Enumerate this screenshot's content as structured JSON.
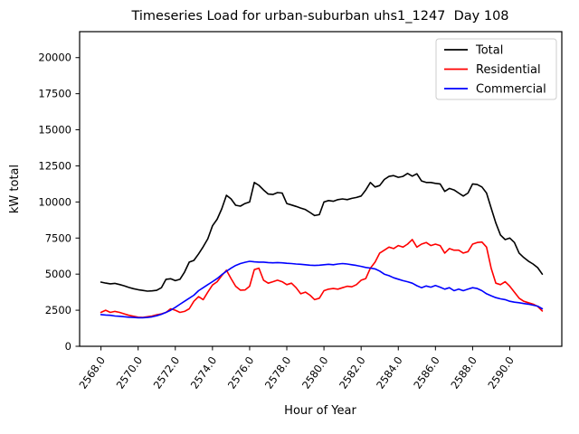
{
  "chart_data": {
    "type": "line",
    "title": "Timeseries Load for urban-suburban uhs1_1247  Day 108",
    "xlabel": "Hour of Year",
    "ylabel": "kW total",
    "xlim": [
      2566.85,
      2592.8
    ],
    "ylim": [
      0,
      21800
    ],
    "grid": false,
    "legend_position": "upper right",
    "x_tick_values": [
      2568,
      2570,
      2572,
      2574,
      2576,
      2578,
      2580,
      2582,
      2584,
      2586,
      2588,
      2590
    ],
    "x_tick_labels": [
      "2568.0",
      "2570.0",
      "2572.0",
      "2574.0",
      "2576.0",
      "2578.0",
      "2580.0",
      "2582.0",
      "2584.0",
      "2586.0",
      "2588.0",
      "2590.0"
    ],
    "y_tick_values": [
      0,
      2500,
      5000,
      7500,
      10000,
      12500,
      15000,
      17500,
      20000
    ],
    "y_tick_labels": [
      "0",
      "2500",
      "5000",
      "7500",
      "10000",
      "12500",
      "15000",
      "17500",
      "20000"
    ],
    "x": [
      2568.0,
      2568.25,
      2568.5,
      2568.75,
      2569.0,
      2569.25,
      2569.5,
      2569.75,
      2570.0,
      2570.25,
      2570.5,
      2570.75,
      2571.0,
      2571.25,
      2571.5,
      2571.75,
      2572.0,
      2572.25,
      2572.5,
      2572.75,
      2573.0,
      2573.25,
      2573.5,
      2573.75,
      2574.0,
      2574.25,
      2574.5,
      2574.75,
      2575.0,
      2575.25,
      2575.5,
      2575.75,
      2576.0,
      2576.25,
      2576.5,
      2576.75,
      2577.0,
      2577.25,
      2577.5,
      2577.75,
      2578.0,
      2578.25,
      2578.5,
      2578.75,
      2579.0,
      2579.25,
      2579.5,
      2579.75,
      2580.0,
      2580.25,
      2580.5,
      2580.75,
      2581.0,
      2581.25,
      2581.5,
      2581.75,
      2582.0,
      2582.25,
      2582.5,
      2582.75,
      2583.0,
      2583.25,
      2583.5,
      2583.75,
      2584.0,
      2584.25,
      2584.5,
      2584.75,
      2585.0,
      2585.25,
      2585.5,
      2585.75,
      2586.0,
      2586.25,
      2586.5,
      2586.75,
      2587.0,
      2587.25,
      2587.5,
      2587.75,
      2588.0,
      2588.25,
      2588.5,
      2588.75,
      2589.0,
      2589.25,
      2589.5,
      2589.75,
      2590.0,
      2590.25,
      2590.5,
      2590.75,
      2591.0,
      2591.25,
      2591.5,
      2591.75
    ],
    "series": [
      {
        "name": "Total",
        "color": "#000000",
        "values": [
          4450,
          4380,
          4330,
          4360,
          4280,
          4190,
          4080,
          3990,
          3920,
          3870,
          3820,
          3840,
          3880,
          4060,
          4640,
          4680,
          4550,
          4640,
          5140,
          5830,
          5950,
          6400,
          6900,
          7450,
          8350,
          8800,
          9520,
          10460,
          10210,
          9770,
          9710,
          9890,
          10000,
          11350,
          11150,
          10830,
          10550,
          10520,
          10650,
          10620,
          9890,
          9790,
          9690,
          9580,
          9470,
          9270,
          9060,
          9120,
          10000,
          10100,
          10050,
          10160,
          10210,
          10160,
          10250,
          10310,
          10410,
          10830,
          11350,
          11040,
          11140,
          11560,
          11770,
          11830,
          11710,
          11770,
          11980,
          11790,
          11950,
          11460,
          11350,
          11350,
          11290,
          11250,
          10730,
          10940,
          10830,
          10620,
          10410,
          10620,
          11250,
          11210,
          11040,
          10620,
          9580,
          8540,
          7710,
          7390,
          7500,
          7190,
          6460,
          6150,
          5900,
          5700,
          5450,
          5000
        ]
      },
      {
        "name": "Residential",
        "color": "#ff0000",
        "values": [
          2350,
          2500,
          2350,
          2420,
          2350,
          2250,
          2150,
          2080,
          2020,
          2000,
          2050,
          2100,
          2180,
          2250,
          2350,
          2600,
          2500,
          2350,
          2420,
          2600,
          3120,
          3440,
          3230,
          3750,
          4250,
          4470,
          4890,
          5270,
          4690,
          4160,
          3890,
          3900,
          4160,
          5310,
          5410,
          4580,
          4370,
          4470,
          4580,
          4470,
          4270,
          4370,
          4060,
          3640,
          3750,
          3540,
          3230,
          3330,
          3850,
          3960,
          4000,
          3960,
          4060,
          4160,
          4120,
          4270,
          4580,
          4690,
          5410,
          5830,
          6460,
          6660,
          6870,
          6770,
          6980,
          6870,
          7080,
          7400,
          6870,
          7080,
          7190,
          6980,
          7080,
          6980,
          6460,
          6770,
          6660,
          6660,
          6460,
          6560,
          7080,
          7190,
          7225,
          6870,
          5410,
          4370,
          4270,
          4470,
          4160,
          3750,
          3330,
          3120,
          3020,
          2920,
          2760,
          2450
        ]
      },
      {
        "name": "Commercial",
        "color": "#0000ff",
        "values": [
          2200,
          2170,
          2150,
          2100,
          2080,
          2050,
          2020,
          2000,
          1980,
          1980,
          2000,
          2040,
          2120,
          2220,
          2350,
          2500,
          2700,
          2910,
          3120,
          3330,
          3540,
          3850,
          4060,
          4270,
          4480,
          4690,
          4960,
          5200,
          5410,
          5600,
          5730,
          5820,
          5890,
          5850,
          5830,
          5830,
          5800,
          5780,
          5800,
          5780,
          5750,
          5730,
          5700,
          5680,
          5650,
          5620,
          5600,
          5620,
          5650,
          5680,
          5650,
          5700,
          5730,
          5700,
          5650,
          5600,
          5540,
          5460,
          5420,
          5360,
          5210,
          5000,
          4890,
          4750,
          4650,
          4550,
          4470,
          4370,
          4200,
          4060,
          4180,
          4100,
          4210,
          4100,
          3960,
          4060,
          3850,
          3960,
          3850,
          3960,
          4060,
          4000,
          3850,
          3640,
          3500,
          3370,
          3290,
          3230,
          3120,
          3060,
          3020,
          2960,
          2920,
          2850,
          2780,
          2600
        ]
      }
    ]
  }
}
